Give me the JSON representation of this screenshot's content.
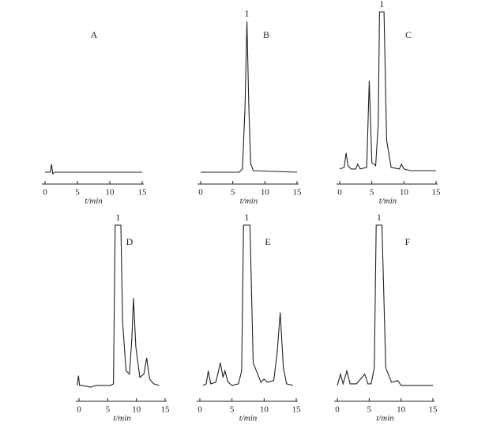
{
  "chart_data": [
    {
      "type": "line",
      "panel_label": "A",
      "xlabel": "t/min",
      "xlim": [
        0,
        15
      ],
      "xticks": [
        0,
        5,
        10,
        15
      ],
      "ylim": [
        0,
        100
      ],
      "color": "#222222",
      "x": [
        0,
        0.8,
        1.0,
        1.2,
        1.5,
        15
      ],
      "values": [
        0,
        0,
        5,
        -1,
        0,
        0
      ]
    },
    {
      "type": "line",
      "panel_label": "B",
      "peak_label": "1",
      "xlabel": "t/min",
      "xlim": [
        0,
        15
      ],
      "xticks": [
        0,
        5,
        10,
        15
      ],
      "ylim": [
        0,
        100
      ],
      "color": "#222222",
      "x": [
        0,
        6.0,
        6.5,
        6.9,
        7.2,
        7.5,
        7.8,
        8.2,
        15
      ],
      "values": [
        0,
        0,
        2,
        40,
        94,
        40,
        5,
        1,
        0
      ]
    },
    {
      "type": "line",
      "panel_label": "C",
      "peak_label": "1",
      "xlabel": "t/min",
      "xlim": [
        0,
        15
      ],
      "xticks": [
        0,
        5,
        10,
        15
      ],
      "ylim": [
        0,
        100
      ],
      "color": "#222222",
      "x": [
        0,
        0.7,
        1.0,
        1.3,
        1.8,
        2.5,
        2.8,
        3.2,
        4.2,
        4.6,
        5.0,
        5.6,
        6.0,
        6.2,
        6.5,
        6.9,
        7.3,
        8.0,
        9.3,
        9.6,
        10.0,
        11.0,
        15
      ],
      "values": [
        2,
        3,
        12,
        4,
        2,
        2,
        5,
        2,
        3,
        57,
        6,
        4,
        30,
        100,
        100,
        100,
        20,
        3,
        2,
        5,
        2,
        1,
        1
      ]
    },
    {
      "type": "line",
      "panel_label": "D",
      "peak_label": "1",
      "xlabel": "t/min",
      "xlim": [
        0,
        15
      ],
      "xticks": [
        0,
        5,
        10,
        15
      ],
      "ylim": [
        0,
        100
      ],
      "color": "#222222",
      "x": [
        -0.3,
        -0.1,
        0.1,
        0.5,
        2.0,
        3.0,
        5.5,
        6.0,
        6.3,
        6.7,
        7.3,
        7.6,
        8.2,
        8.8,
        9.2,
        9.5,
        9.9,
        10.6,
        11.3,
        11.8,
        12.3,
        13.0,
        14.0
      ],
      "values": [
        1,
        7,
        1,
        1,
        0,
        1,
        1,
        2,
        100,
        100,
        100,
        40,
        10,
        8,
        30,
        55,
        25,
        6,
        8,
        18,
        5,
        2,
        1
      ]
    },
    {
      "type": "line",
      "panel_label": "E",
      "peak_label": "1",
      "xlabel": "t/min",
      "xlim": [
        0,
        15
      ],
      "xticks": [
        0,
        5,
        10,
        15
      ],
      "ylim": [
        0,
        100
      ],
      "color": "#222222",
      "x": [
        0.5,
        1.0,
        1.3,
        1.7,
        2.5,
        3.2,
        3.6,
        3.9,
        4.4,
        5.0,
        6.0,
        6.5,
        6.8,
        7.3,
        7.8,
        8.3,
        9.5,
        10.0,
        10.5,
        11.5,
        12.0,
        12.5,
        13.0,
        13.5,
        14.5
      ],
      "values": [
        1,
        2,
        10,
        2,
        3,
        15,
        6,
        10,
        3,
        1,
        2,
        10,
        100,
        100,
        100,
        15,
        3,
        5,
        3,
        4,
        20,
        46,
        12,
        2,
        1
      ]
    },
    {
      "type": "line",
      "panel_label": "F",
      "peak_label": "1",
      "xlabel": "t/min",
      "xlim": [
        0,
        15
      ],
      "xticks": [
        0,
        5,
        10,
        15
      ],
      "ylim": [
        0,
        100
      ],
      "color": "#222222",
      "x": [
        0,
        0.5,
        0.9,
        1.5,
        2.0,
        3.0,
        4.3,
        4.8,
        5.3,
        5.8,
        6.1,
        6.6,
        7.0,
        7.6,
        8.5,
        9.5,
        10.0,
        11.0,
        15
      ],
      "values": [
        1,
        8,
        2,
        10,
        2,
        2,
        8,
        2,
        2,
        12,
        100,
        100,
        100,
        12,
        3,
        4,
        1,
        1,
        1
      ]
    }
  ]
}
